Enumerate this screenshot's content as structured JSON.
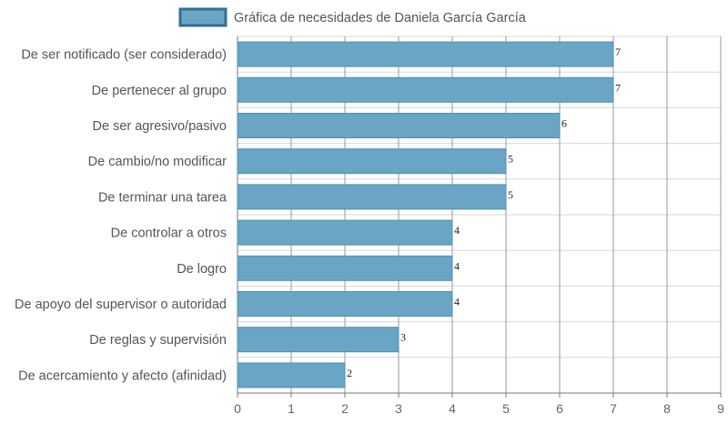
{
  "chart_data": {
    "type": "bar",
    "orientation": "horizontal",
    "categories": [
      "De ser notificado (ser considerado)",
      "De pertenecer al grupo",
      "De ser agresivo/pasivo",
      "De cambio/no modificar",
      "De terminar una tarea",
      "De controlar a otros",
      "De logro",
      "De apoyo del supervisor o autoridad",
      "De reglas y supervisión",
      "De acercamiento y afecto (afinidad)"
    ],
    "series": [
      {
        "name": "Gráfica de necesidades de Daniela García García",
        "values": [
          7,
          7,
          6,
          5,
          5,
          4,
          4,
          4,
          3,
          2
        ]
      }
    ],
    "xlim": [
      0,
      9
    ],
    "xticks": [
      "0",
      "1",
      "2",
      "3",
      "4",
      "5",
      "6",
      "7",
      "8",
      "9"
    ],
    "grid": true,
    "legend_position": "top",
    "colors": {
      "bar_fill": "#6aa5c5",
      "bar_stroke": "#4f8fb3",
      "legend_fill": "#6aa5c5",
      "legend_stroke": "#2f6f96",
      "grid": "#d9d9d9",
      "grid_major": "#999999",
      "axis": "#777777"
    }
  }
}
